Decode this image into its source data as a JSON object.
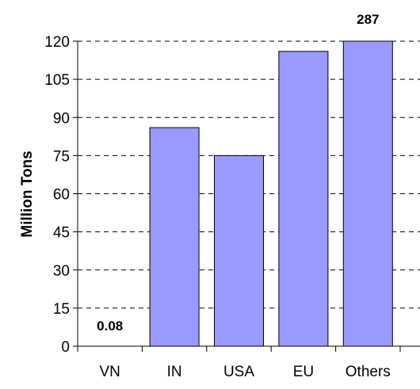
{
  "chart_data": {
    "type": "bar",
    "categories": [
      "VN",
      "IN",
      "USA",
      "EU",
      "Others"
    ],
    "values": [
      0.08,
      86,
      75,
      116,
      287
    ],
    "data_labels": [
      "0.08",
      "",
      "",
      "",
      "287"
    ],
    "xlabel": "",
    "ylabel": "Million Tons",
    "ylim": [
      0,
      120
    ],
    "yticks": [
      0,
      15,
      30,
      45,
      60,
      75,
      90,
      105,
      120
    ],
    "grid": true,
    "bar_color": "#9999ff",
    "bar_edge_color": "#000000"
  }
}
